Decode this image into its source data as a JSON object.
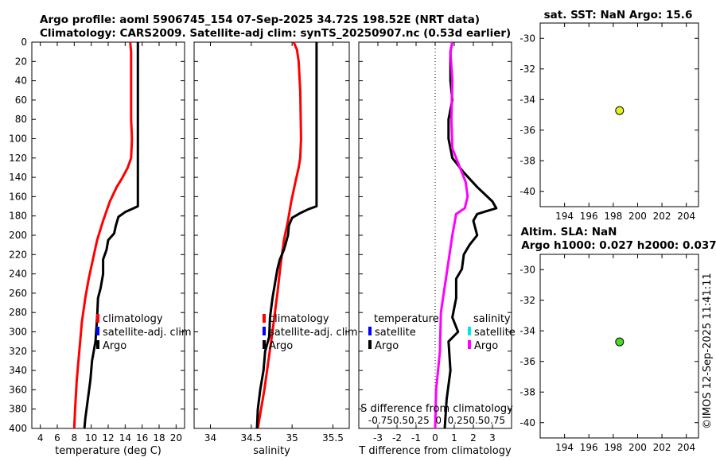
{
  "header": {
    "title_line1": "Argo profile: aoml 5906745_154 07-Sep-2025 34.72S 198.52E (NRT data)",
    "title_line2": "Climatology: CARS2009. Satellite-adj clim: synTS_20250907.nc (0.53d earlier)"
  },
  "watermark": "©IMOS 12-Sep-2025 11:41:11",
  "colors": {
    "climatology": "#ff0000",
    "satellite_adj_clim": "#0000ff",
    "argo": "#000000",
    "salinity_diff": "#ff00ff",
    "salinity_sat": "#00e5e5",
    "sst_marker": "#e5f21a",
    "sla_marker": "#44dd22"
  },
  "chart_data": [
    {
      "id": "temperature",
      "type": "line",
      "xlabel": "temperature (deg C)",
      "xlim": [
        3,
        21
      ],
      "xticks": [
        4,
        6,
        8,
        10,
        12,
        14,
        16,
        18,
        20
      ],
      "ylim": [
        400,
        0
      ],
      "yticks": [
        0,
        20,
        40,
        60,
        80,
        100,
        120,
        140,
        160,
        180,
        200,
        220,
        240,
        260,
        280,
        300,
        320,
        340,
        360,
        380,
        400
      ],
      "legend": [
        "climatology",
        "satellite-adj. clim",
        "Argo"
      ],
      "series": [
        {
          "name": "climatology",
          "color": "#ff0000",
          "points": [
            [
              14.6,
              0
            ],
            [
              14.7,
              10
            ],
            [
              14.7,
              50
            ],
            [
              14.7,
              80
            ],
            [
              14.8,
              100
            ],
            [
              14.7,
              120
            ],
            [
              14.3,
              130
            ],
            [
              13.7,
              140
            ],
            [
              13.0,
              150
            ],
            [
              12.2,
              165
            ],
            [
              11.4,
              185
            ],
            [
              10.7,
              205
            ],
            [
              10.2,
              225
            ],
            [
              9.7,
              245
            ],
            [
              9.3,
              265
            ],
            [
              8.9,
              290
            ],
            [
              8.6,
              320
            ],
            [
              8.3,
              350
            ],
            [
              8.1,
              380
            ],
            [
              8.0,
              400
            ]
          ]
        },
        {
          "name": "Argo",
          "color": "#000000",
          "points": [
            [
              15.5,
              0
            ],
            [
              15.5,
              100
            ],
            [
              15.5,
              160
            ],
            [
              15.5,
              170
            ],
            [
              15.0,
              172
            ],
            [
              14.0,
              176
            ],
            [
              13.2,
              181
            ],
            [
              12.9,
              190
            ],
            [
              12.7,
              198
            ],
            [
              12.0,
              205
            ],
            [
              11.8,
              215
            ],
            [
              11.4,
              225
            ],
            [
              11.4,
              240
            ],
            [
              11.1,
              255
            ],
            [
              10.8,
              265
            ],
            [
              10.7,
              285
            ],
            [
              10.5,
              310
            ],
            [
              10.1,
              330
            ],
            [
              9.9,
              350
            ],
            [
              9.6,
              370
            ],
            [
              9.3,
              390
            ],
            [
              9.2,
              400
            ]
          ]
        }
      ]
    },
    {
      "id": "salinity",
      "type": "line",
      "xlabel": "salinity",
      "xlim": [
        33.8,
        35.7
      ],
      "xticks": [
        34,
        34.5,
        35,
        35.5
      ],
      "ylim": [
        400,
        0
      ],
      "legend": [
        "climatology",
        "satellite-adj. clim",
        "Argo"
      ],
      "series": [
        {
          "name": "climatology",
          "color": "#ff0000",
          "points": [
            [
              35.02,
              0
            ],
            [
              35.06,
              8
            ],
            [
              35.08,
              20
            ],
            [
              35.1,
              50
            ],
            [
              35.11,
              100
            ],
            [
              35.1,
              120
            ],
            [
              35.08,
              130
            ],
            [
              35.04,
              145
            ],
            [
              34.99,
              165
            ],
            [
              34.95,
              185
            ],
            [
              34.9,
              205
            ],
            [
              34.86,
              230
            ],
            [
              34.82,
              260
            ],
            [
              34.76,
              300
            ],
            [
              34.71,
              330
            ],
            [
              34.66,
              360
            ],
            [
              34.6,
              390
            ],
            [
              34.58,
              400
            ]
          ]
        },
        {
          "name": "Argo",
          "color": "#000000",
          "points": [
            [
              35.3,
              0
            ],
            [
              35.3,
              100
            ],
            [
              35.3,
              160
            ],
            [
              35.3,
              170
            ],
            [
              35.2,
              173
            ],
            [
              35.1,
              177
            ],
            [
              35.0,
              182
            ],
            [
              34.96,
              190
            ],
            [
              34.95,
              200
            ],
            [
              34.9,
              215
            ],
            [
              34.85,
              225
            ],
            [
              34.82,
              235
            ],
            [
              34.79,
              250
            ],
            [
              34.76,
              265
            ],
            [
              34.73,
              285
            ],
            [
              34.72,
              305
            ],
            [
              34.67,
              320
            ],
            [
              34.65,
              340
            ],
            [
              34.61,
              360
            ],
            [
              34.58,
              380
            ],
            [
              34.57,
              400
            ]
          ]
        }
      ]
    },
    {
      "id": "difference",
      "type": "line",
      "xlabel": "T difference from climatology",
      "xlabel_top": "S difference from climatology",
      "xlim": [
        -4,
        4
      ],
      "xticks": [
        -3,
        -2,
        -1,
        0,
        1,
        2,
        3
      ],
      "s_ticks": "-0.750.50.25  0  0.250.50.75",
      "ylim": [
        400,
        0
      ],
      "legend_temperature_title": "temperature",
      "legend_salinity_title": "salinity",
      "legend_temperature": [
        "satellite",
        "Argo"
      ],
      "legend_salinity": [
        "satellite",
        "Argo"
      ],
      "series": [
        {
          "name": "T Argo",
          "color": "#000000",
          "points": [
            [
              0.9,
              0
            ],
            [
              0.8,
              10
            ],
            [
              0.8,
              40
            ],
            [
              0.9,
              60
            ],
            [
              0.7,
              80
            ],
            [
              0.7,
              100
            ],
            [
              0.9,
              120
            ],
            [
              1.5,
              135
            ],
            [
              2.2,
              150
            ],
            [
              3.0,
              165
            ],
            [
              3.2,
              172
            ],
            [
              2.7,
              175
            ],
            [
              2.2,
              178
            ],
            [
              2.0,
              185
            ],
            [
              2.2,
              200
            ],
            [
              1.8,
              210
            ],
            [
              1.5,
              220
            ],
            [
              1.4,
              235
            ],
            [
              1.1,
              245
            ],
            [
              1.1,
              265
            ],
            [
              0.9,
              285
            ],
            [
              1.2,
              300
            ],
            [
              0.7,
              310
            ],
            [
              0.8,
              340
            ],
            [
              0.6,
              370
            ],
            [
              0.5,
              400
            ]
          ]
        },
        {
          "name": "S Argo",
          "color": "#ff00ff",
          "points": [
            [
              0.9,
              0
            ],
            [
              0.8,
              10
            ],
            [
              0.9,
              40
            ],
            [
              0.85,
              80
            ],
            [
              0.9,
              110
            ],
            [
              1.2,
              125
            ],
            [
              1.6,
              145
            ],
            [
              1.7,
              160
            ],
            [
              1.55,
              172
            ],
            [
              1.1,
              178
            ],
            [
              0.9,
              200
            ],
            [
              0.6,
              240
            ],
            [
              0.3,
              280
            ],
            [
              0.25,
              320
            ],
            [
              0.05,
              360
            ],
            [
              0.0,
              400
            ]
          ]
        }
      ]
    },
    {
      "id": "sst_map",
      "type": "scatter",
      "title": "sat. SST: NaN Argo: 15.6",
      "xlim": [
        192,
        205
      ],
      "xticks": [
        194,
        196,
        198,
        200,
        202,
        204
      ],
      "ylim": [
        -41,
        -29
      ],
      "yticks": [
        -30,
        -32,
        -34,
        -36,
        -38,
        -40
      ],
      "points": [
        {
          "x": 198.52,
          "y": -34.72,
          "color": "#e5f21a"
        }
      ]
    },
    {
      "id": "sla_map",
      "type": "scatter",
      "title_line1": "Altim. SLA: NaN",
      "title_line2": "Argo h1000: 0.027 h2000: 0.037",
      "xlim": [
        192,
        205
      ],
      "xticks": [
        194,
        196,
        198,
        200,
        202,
        204
      ],
      "ylim": [
        -41,
        -29
      ],
      "yticks": [
        -30,
        -32,
        -34,
        -36,
        -38,
        -40
      ],
      "points": [
        {
          "x": 198.52,
          "y": -34.72,
          "color": "#44dd22"
        }
      ]
    }
  ]
}
